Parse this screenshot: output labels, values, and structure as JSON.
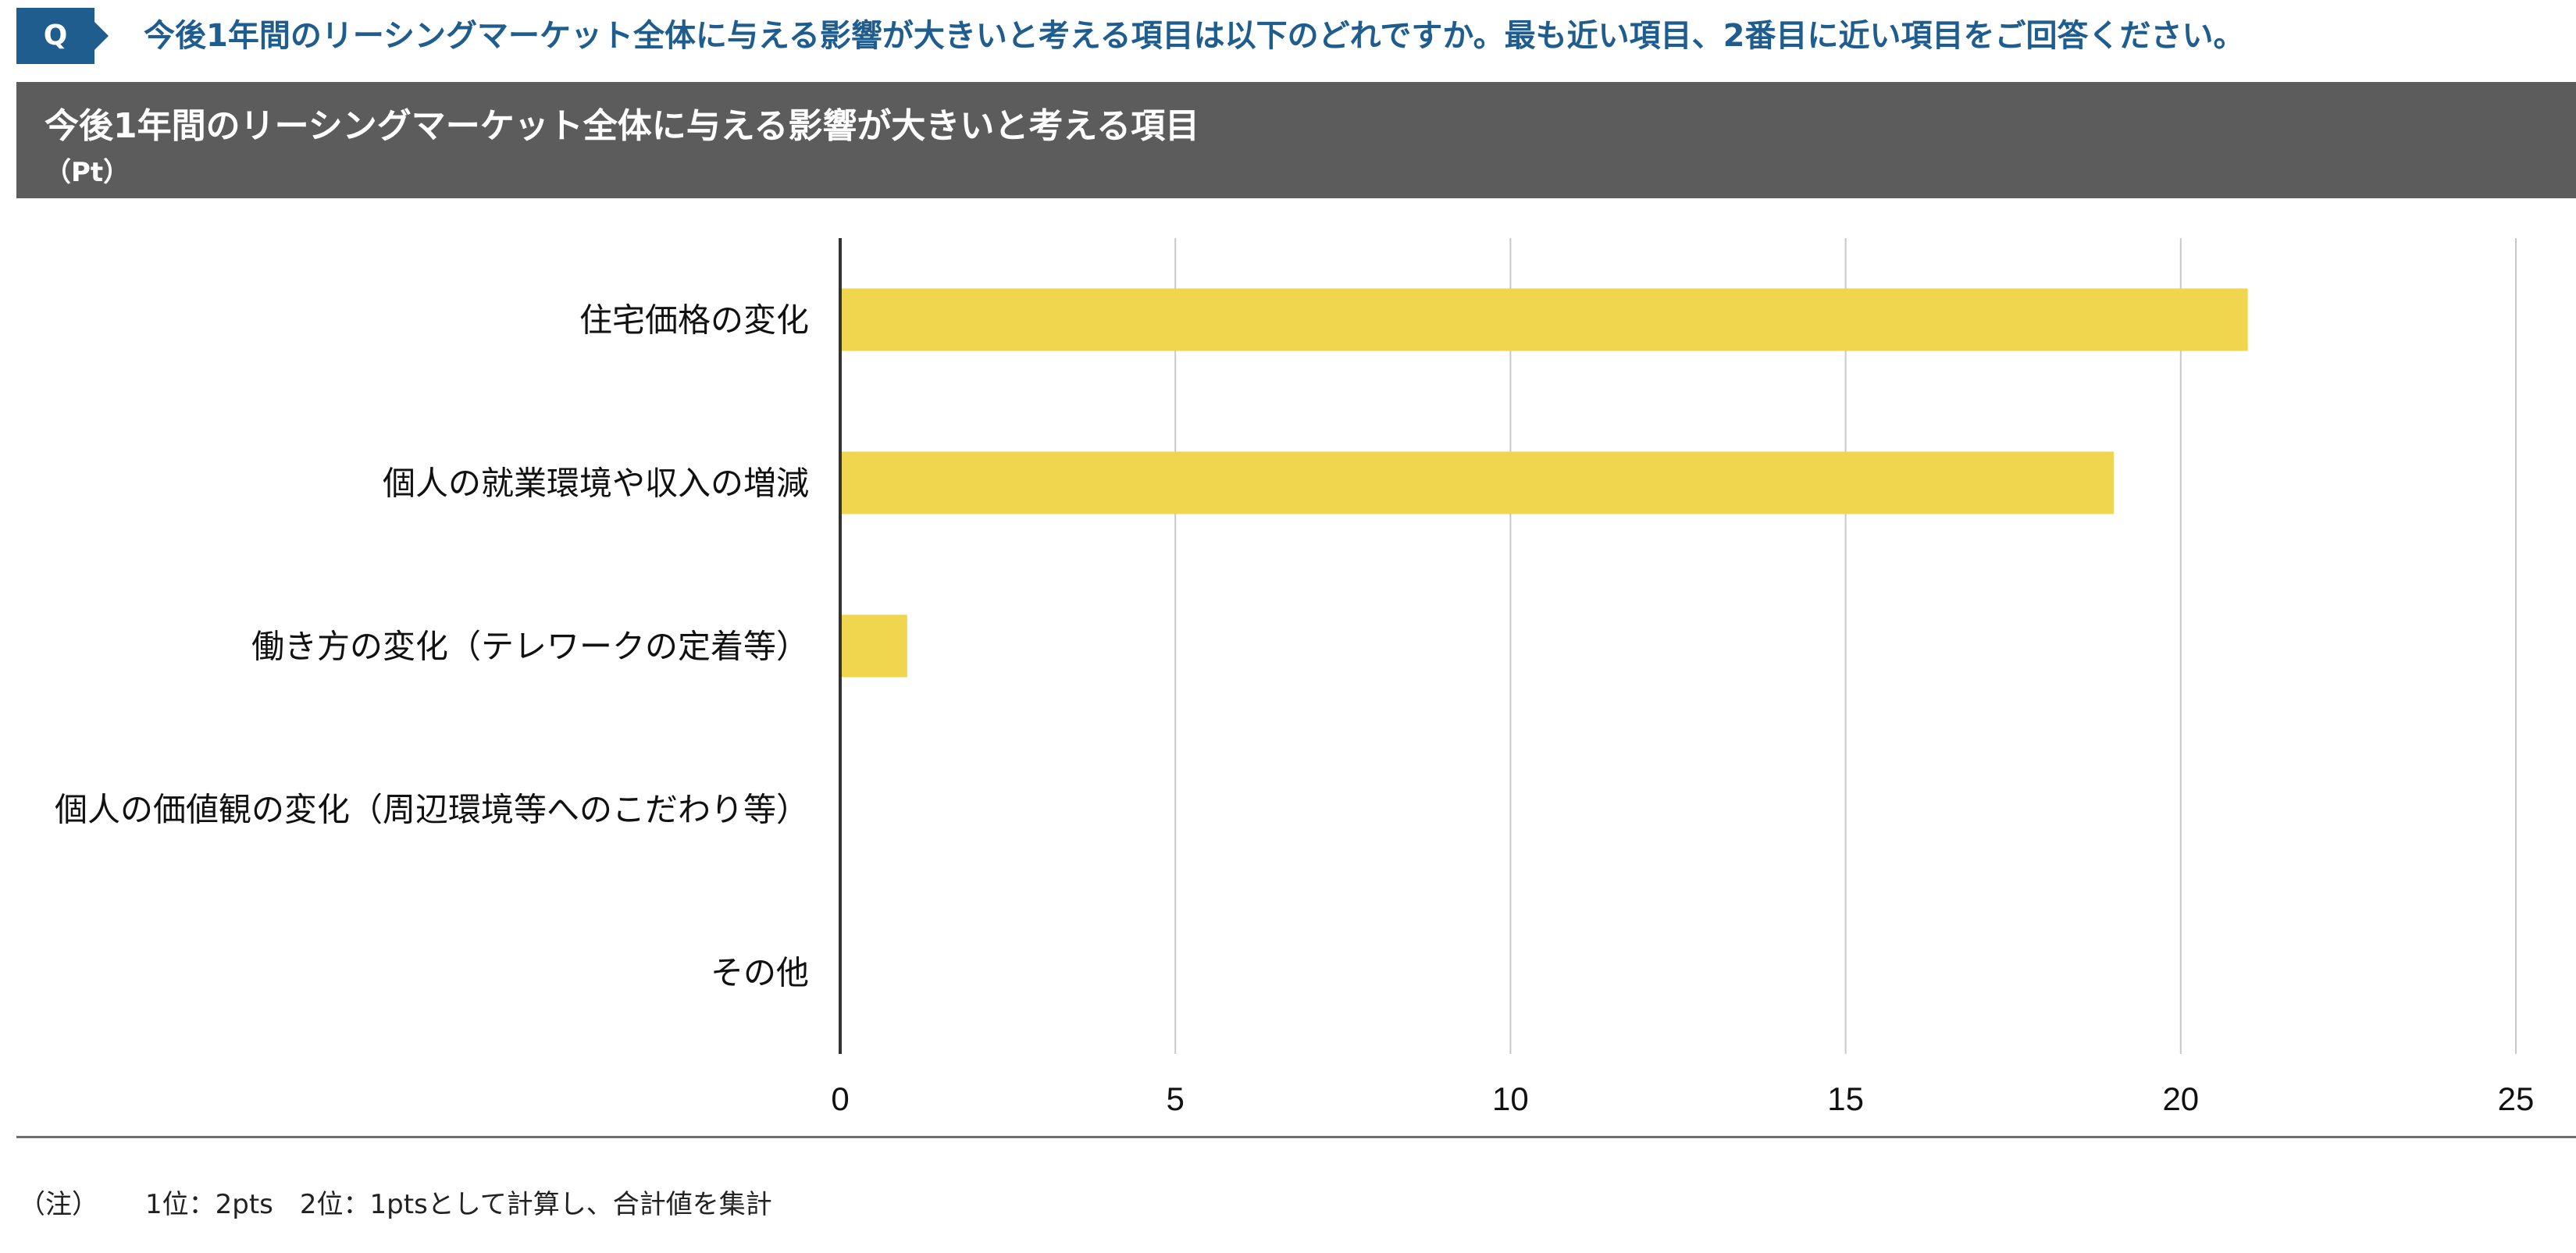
{
  "question": {
    "badge": "Q",
    "text": "今後1年間のリーシングマーケット全体に与える影響が大きいと考える項目は以下のどれですか。最も近い項目、2番目に近い項目をご回答ください。"
  },
  "colors": {
    "question_accent": "#1f5d8f",
    "title_bar": "#5c5c5c",
    "bar": "#f0d54e",
    "gridline": "#c8c8c8",
    "axis": "#333333"
  },
  "chart_data": {
    "type": "bar",
    "orientation": "horizontal",
    "title": "今後1年間のリーシングマーケット全体に与える影響が大きいと考える項目",
    "unit": "（Pt）",
    "categories": [
      "住宅価格の変化",
      "個人の就業環境や収入の増減",
      "働き方の変化（テレワークの定着等）",
      "個人の価値観の変化（周辺環境等へのこだわり等）",
      "その他"
    ],
    "values": [
      21,
      19,
      1,
      0,
      0
    ],
    "xlim": [
      0,
      25
    ],
    "xticks": [
      "0",
      "5",
      "10",
      "15",
      "20",
      "25"
    ],
    "grid": true
  },
  "footnote": {
    "label": "（注）",
    "text": "1位：2pts　2位：1ptsとして計算し、合計値を集計"
  }
}
